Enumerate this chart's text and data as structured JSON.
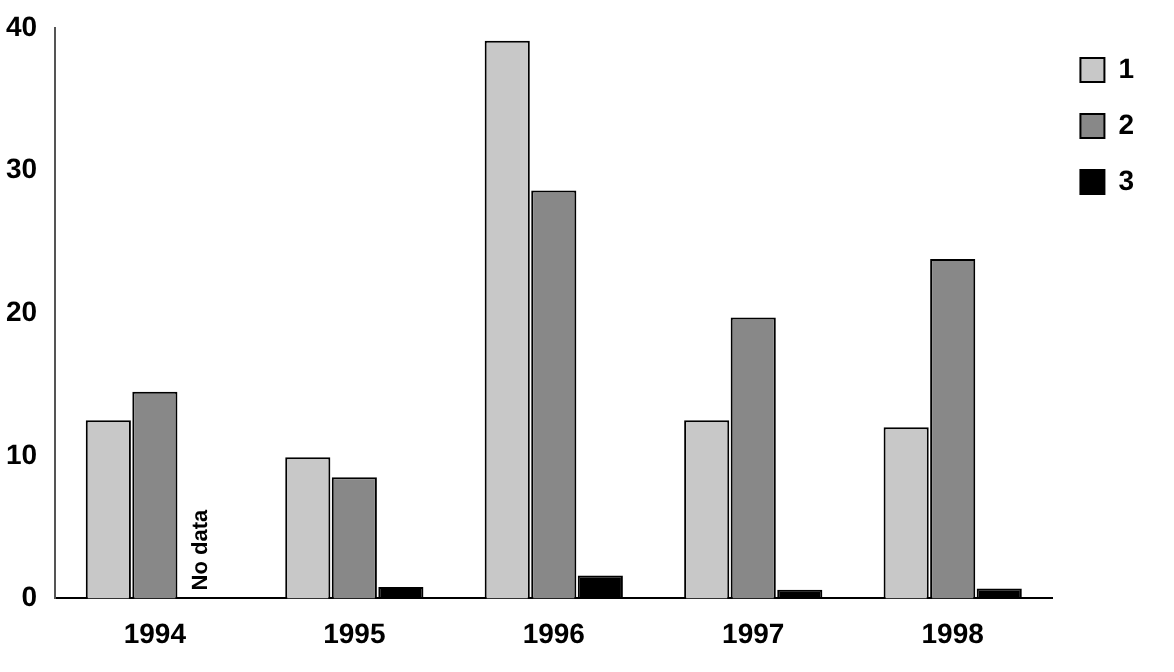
{
  "chart_data": {
    "type": "bar",
    "categories": [
      "1994",
      "1995",
      "1996",
      "1997",
      "1998"
    ],
    "series": [
      {
        "name": "1",
        "color": "#c8c8c8",
        "values": [
          12.5,
          9.9,
          39.1,
          12.5,
          12.0
        ]
      },
      {
        "name": "2",
        "color": "#888888",
        "values": [
          14.5,
          8.5,
          28.6,
          19.7,
          23.8
        ]
      },
      {
        "name": "3",
        "color": "#000000",
        "values": [
          null,
          0.8,
          1.6,
          0.6,
          0.7
        ]
      }
    ],
    "annotations": [
      {
        "text": "No data",
        "x": "1994",
        "y": 0
      }
    ],
    "ylim": [
      0,
      40
    ],
    "yticks": [
      0,
      10,
      20,
      30,
      40
    ],
    "grid": false,
    "legend": "top right"
  }
}
